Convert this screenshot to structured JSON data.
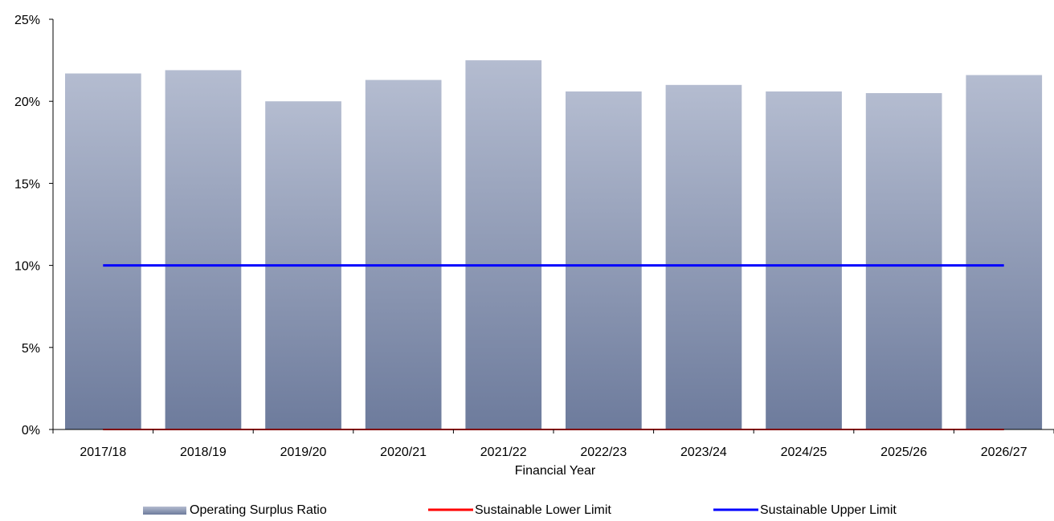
{
  "chart_data": {
    "type": "bar",
    "xlabel": "Financial Year",
    "ylabel": "",
    "ylim": [
      0,
      0.25
    ],
    "y_ticks": [
      0,
      0.05,
      0.1,
      0.15,
      0.2,
      0.25
    ],
    "y_tick_labels": [
      "0%",
      "5%",
      "10%",
      "15%",
      "20%",
      "25%"
    ],
    "categories": [
      "2017/18",
      "2018/19",
      "2019/20",
      "2020/21",
      "2021/22",
      "2022/23",
      "2023/24",
      "2024/25",
      "2025/26",
      "2026/27"
    ],
    "series": [
      {
        "name": "Operating Surplus Ratio",
        "kind": "bar",
        "color": "#8a97b3",
        "values": [
          0.217,
          0.219,
          0.2,
          0.213,
          0.225,
          0.206,
          0.21,
          0.206,
          0.205,
          0.216
        ]
      },
      {
        "name": "Sustainable Lower Limit",
        "kind": "line",
        "color": "#ff0000",
        "values": [
          0,
          0,
          0,
          0,
          0,
          0,
          0,
          0,
          0,
          0
        ]
      },
      {
        "name": "Sustainable Upper Limit",
        "kind": "line",
        "color": "#0000ff",
        "values": [
          0.1,
          0.1,
          0.1,
          0.1,
          0.1,
          0.1,
          0.1,
          0.1,
          0.1,
          0.1
        ]
      }
    ],
    "grid": false,
    "legend_position": "bottom"
  }
}
